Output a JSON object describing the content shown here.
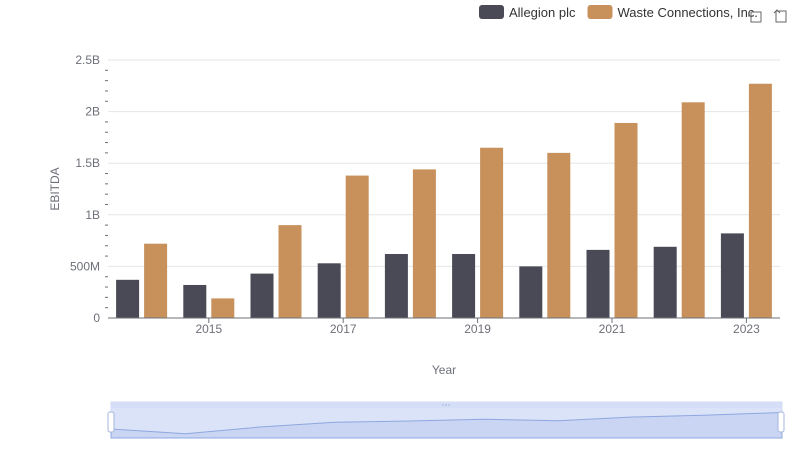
{
  "chart_data": {
    "type": "bar",
    "categories": [
      "2014",
      "2015",
      "2016",
      "2017",
      "2018",
      "2019",
      "2020",
      "2021",
      "2022",
      "2023"
    ],
    "x_tick_labels": [
      "2015",
      "2017",
      "2019",
      "2021",
      "2023"
    ],
    "series": [
      {
        "name": "Allegion plc",
        "color": "#4a4a57",
        "values": [
          370000000,
          320000000,
          430000000,
          530000000,
          620000000,
          620000000,
          500000000,
          660000000,
          690000000,
          820000000
        ]
      },
      {
        "name": "Waste Connections, Inc.",
        "color": "#c8915c",
        "values": [
          720000000,
          190000000,
          900000000,
          1380000000,
          1440000000,
          1650000000,
          1600000000,
          1890000000,
          2090000000,
          2270000000
        ]
      }
    ],
    "y_ticks": [
      0,
      500000000,
      1000000000,
      1500000000,
      2000000000,
      2500000000
    ],
    "y_tick_labels": [
      "0",
      "500M",
      "1B",
      "1.5B",
      "2B",
      "2.5B"
    ],
    "ylim": [
      0,
      2500000000
    ],
    "xlabel": "Year",
    "ylabel": "EBITDA",
    "title": "",
    "grid": true,
    "legend_position": "top-right"
  },
  "toolbar": {
    "zoom_icon": "zoom-select-icon",
    "restore_icon": "restore-icon"
  },
  "datazoom": {
    "range_start": 0,
    "range_end": 1
  }
}
